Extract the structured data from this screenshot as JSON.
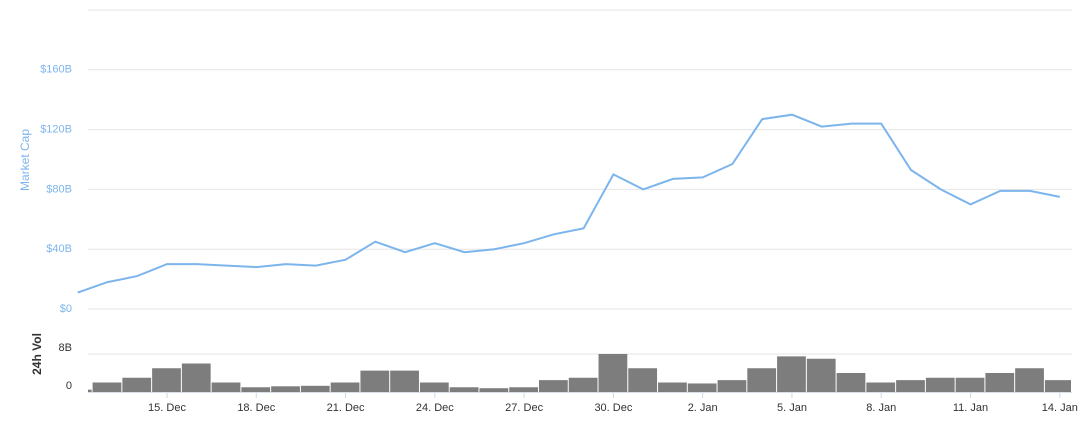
{
  "chart_data": [
    {
      "type": "line",
      "y_label": "Market Cap",
      "categories": [
        null,
        null,
        null,
        "15. Dec",
        null,
        null,
        "18. Dec",
        null,
        null,
        "21. Dec",
        null,
        null,
        "24. Dec",
        null,
        null,
        "27. Dec",
        null,
        null,
        "30. Dec",
        null,
        null,
        "2. Jan",
        null,
        null,
        "5. Jan",
        null,
        null,
        "8. Jan",
        null,
        null,
        "11. Jan",
        null,
        null,
        "14. Jan"
      ],
      "series": [
        {
          "color": "#7cb5ec",
          "values": [
            11,
            18,
            22,
            30,
            30,
            29,
            28,
            30,
            29,
            33,
            45,
            38,
            44,
            38,
            40,
            44,
            50,
            54,
            90,
            80,
            87,
            88,
            97,
            127,
            130,
            122,
            124,
            124,
            93,
            80,
            70,
            79,
            79,
            75
          ]
        }
      ],
      "ylim": [
        0,
        200
      ],
      "yticks": [
        {
          "value": 0,
          "label": "$0"
        },
        {
          "value": 40,
          "label": "$40B"
        },
        {
          "value": 80,
          "label": "$80B"
        },
        {
          "value": 120,
          "label": "$120B"
        },
        {
          "value": 160,
          "label": "$160B"
        }
      ],
      "grid": true
    },
    {
      "type": "bar",
      "y_label": "24h Vol",
      "series": [
        {
          "color": "#666666",
          "values": [
            0.5,
            2,
            3,
            5,
            6,
            2,
            1,
            1.2,
            1.3,
            2,
            4.5,
            4.5,
            2,
            1,
            0.8,
            1,
            2.5,
            3,
            8,
            5,
            2,
            1.8,
            2.5,
            5,
            7.5,
            7,
            4,
            2,
            2.5,
            3,
            3,
            4,
            5,
            2.5
          ]
        }
      ],
      "ylim": [
        0,
        16
      ],
      "yticks": [
        0,
        {
          "value": 8,
          "label": "8B"
        }
      ],
      "grid": true
    }
  ]
}
